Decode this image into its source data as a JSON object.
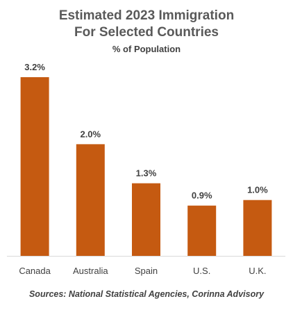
{
  "chart_data": {
    "type": "bar",
    "title_line1": "Estimated 2023 Immigration",
    "title_line2": "For Selected Countries",
    "subtitle": "% of Population",
    "categories": [
      "Canada",
      "Australia",
      "Spain",
      "U.S.",
      "U.K."
    ],
    "values": [
      3.2,
      2.0,
      1.3,
      0.9,
      1.0
    ],
    "data_labels": [
      "3.2%",
      "2.0%",
      "1.3%",
      "0.9%",
      "1.0%"
    ],
    "ylim": [
      0,
      3.2
    ],
    "grid": false,
    "legend": "none",
    "bar_color": "#C55A11",
    "source": "Sources: National Statistical Agencies, Corinna Advisory"
  }
}
